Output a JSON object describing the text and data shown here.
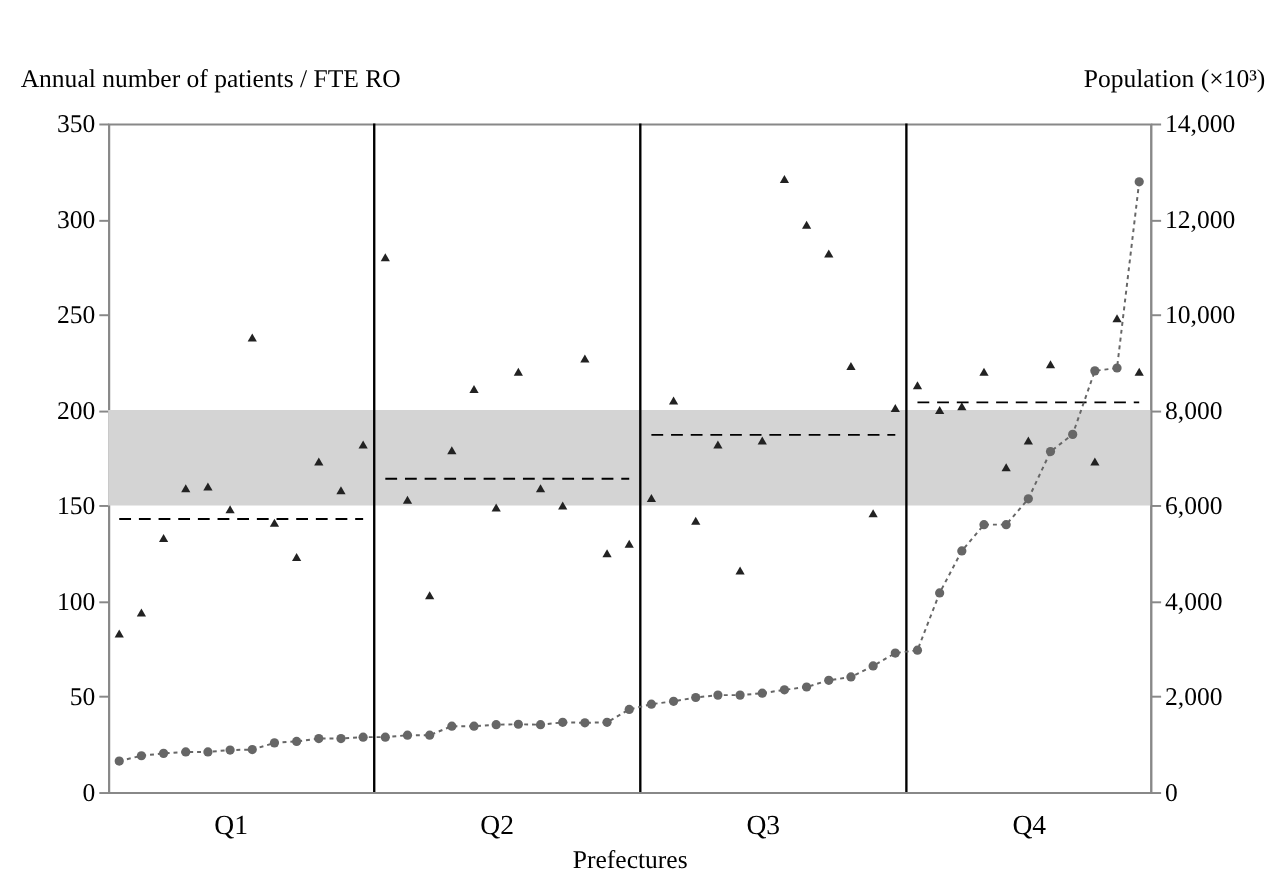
{
  "chart_data": {
    "type": "scatter",
    "xlabel": "Prefectures",
    "ylabel": "Annual number of patients / FTE RO",
    "y2label": "Population (×10³)",
    "categories": [
      null,
      null,
      null,
      null,
      null,
      "Q1",
      null,
      null,
      null,
      null,
      null,
      null,
      null,
      null,
      null,
      null,
      null,
      "Q2",
      null,
      null,
      null,
      null,
      null,
      null,
      null,
      null,
      null,
      null,
      null,
      "Q3",
      null,
      null,
      null,
      null,
      null,
      null,
      null,
      null,
      null,
      null,
      null,
      "Q4",
      null,
      null,
      null,
      null,
      null
    ],
    "ylim": [
      0,
      350
    ],
    "yticks": [
      0,
      50,
      100,
      150,
      200,
      250,
      300,
      350
    ],
    "y2lim": [
      0,
      14000
    ],
    "y2ticks": [
      {
        "value": 0,
        "label": "0"
      },
      {
        "value": 2000,
        "label": "2,000"
      },
      {
        "value": 4000,
        "label": "4,000"
      },
      {
        "value": 6000,
        "label": "6,000"
      },
      {
        "value": 8000,
        "label": "8,000"
      },
      {
        "value": 10000,
        "label": "10,000"
      },
      {
        "value": 12000,
        "label": "12,000"
      },
      {
        "value": 14000,
        "label": "14,000"
      }
    ],
    "series": [
      {
        "color": "#222222",
        "marker": "triangle",
        "axis": "y",
        "values": [
          83,
          94,
          133,
          159,
          160,
          148,
          238,
          141,
          123,
          173,
          158,
          182,
          280,
          153,
          103,
          179,
          211,
          149,
          220,
          159,
          150,
          227,
          125,
          130,
          154,
          205,
          142,
          182,
          116,
          184,
          321,
          297,
          282,
          223,
          146,
          201,
          213,
          200,
          202,
          220,
          170,
          184,
          224,
          null,
          173,
          248,
          220
        ]
      },
      {
        "type": "line",
        "color": "#666666",
        "marker": "circle",
        "line_style": "dotted",
        "axis": "y2",
        "values": [
          650,
          760,
          810,
          840,
          840,
          880,
          890,
          1030,
          1060,
          1120,
          1120,
          1150,
          1150,
          1190,
          1190,
          1380,
          1380,
          1410,
          1420,
          1410,
          1460,
          1450,
          1460,
          1730,
          1840,
          1900,
          1980,
          2030,
          2030,
          2070,
          2140,
          2200,
          2340,
          2410,
          2640,
          2910,
          2970,
          4170,
          5050,
          5600,
          5600,
          6140,
          7130,
          7490,
          8820,
          8880,
          12780
        ]
      },
      {
        "type": "line",
        "color": "#000000",
        "marker": "none",
        "line_style": "dashed",
        "axis": "y",
        "values": [
          143,
          143,
          143,
          143,
          143,
          143,
          143,
          143,
          143,
          143,
          143,
          143,
          null,
          null,
          null,
          null,
          null,
          null,
          null,
          null,
          null,
          null,
          null,
          null,
          null,
          null,
          null,
          null,
          null,
          null,
          null,
          null,
          null,
          null,
          null,
          null,
          null,
          null,
          null,
          null,
          null,
          null,
          null,
          null,
          null,
          null,
          null
        ]
      },
      {
        "type": "line",
        "color": "#000000",
        "marker": "none",
        "line_style": "dashed",
        "axis": "y",
        "values": [
          null,
          null,
          null,
          null,
          null,
          null,
          null,
          null,
          null,
          null,
          null,
          null,
          164,
          164,
          164,
          164,
          164,
          164,
          164,
          164,
          164,
          164,
          164,
          164,
          null,
          null,
          null,
          null,
          null,
          null,
          null,
          null,
          null,
          null,
          null,
          null,
          null,
          null,
          null,
          null,
          null,
          null,
          null,
          null,
          null,
          null,
          null
        ]
      },
      {
        "type": "line",
        "color": "#000000",
        "marker": "none",
        "line_style": "dashed",
        "axis": "y",
        "values": [
          null,
          null,
          null,
          null,
          null,
          null,
          null,
          null,
          null,
          null,
          null,
          null,
          null,
          null,
          null,
          null,
          null,
          null,
          null,
          null,
          null,
          null,
          null,
          null,
          187,
          187,
          187,
          187,
          187,
          187,
          187,
          187,
          187,
          187,
          187,
          187,
          null,
          null,
          null,
          null,
          null,
          null,
          null,
          null,
          null,
          null,
          null
        ]
      },
      {
        "type": "line",
        "color": "#000000",
        "marker": "none",
        "line_style": "dashed",
        "axis": "y",
        "values": [
          null,
          null,
          null,
          null,
          null,
          null,
          null,
          null,
          null,
          null,
          null,
          null,
          null,
          null,
          null,
          null,
          null,
          null,
          null,
          null,
          null,
          null,
          null,
          null,
          null,
          null,
          null,
          null,
          null,
          null,
          null,
          null,
          null,
          null,
          null,
          null,
          204,
          204,
          204,
          204,
          204,
          204,
          204,
          204,
          204,
          204,
          204
        ]
      }
    ],
    "bands": [
      {
        "axis": "y",
        "from": 150,
        "to": 200,
        "color": "#d4d4d4"
      }
    ],
    "grid": false
  }
}
